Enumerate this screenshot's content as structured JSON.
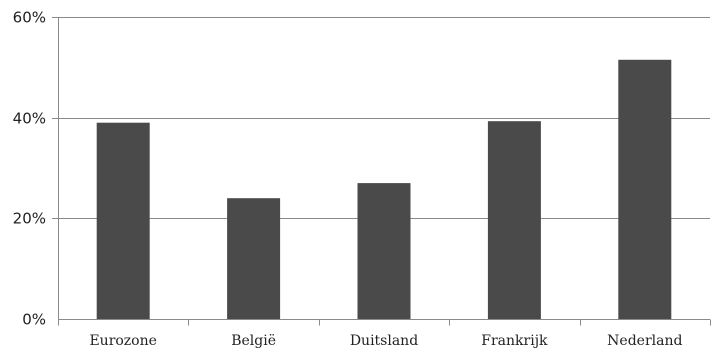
{
  "chart_data": {
    "type": "bar",
    "categories": [
      "Eurozone",
      "België",
      "Duitsland",
      "Frankrijk",
      "Nederland"
    ],
    "values": [
      39,
      24,
      27,
      39.3,
      51.5
    ],
    "y_ticks": [
      "0%",
      "20%",
      "40%",
      "60%"
    ],
    "y_tick_values": [
      0,
      20,
      40,
      60
    ],
    "ylim": [
      0,
      60
    ],
    "grid": true,
    "legend": "none",
    "bar_color": "#4a4a4a"
  }
}
